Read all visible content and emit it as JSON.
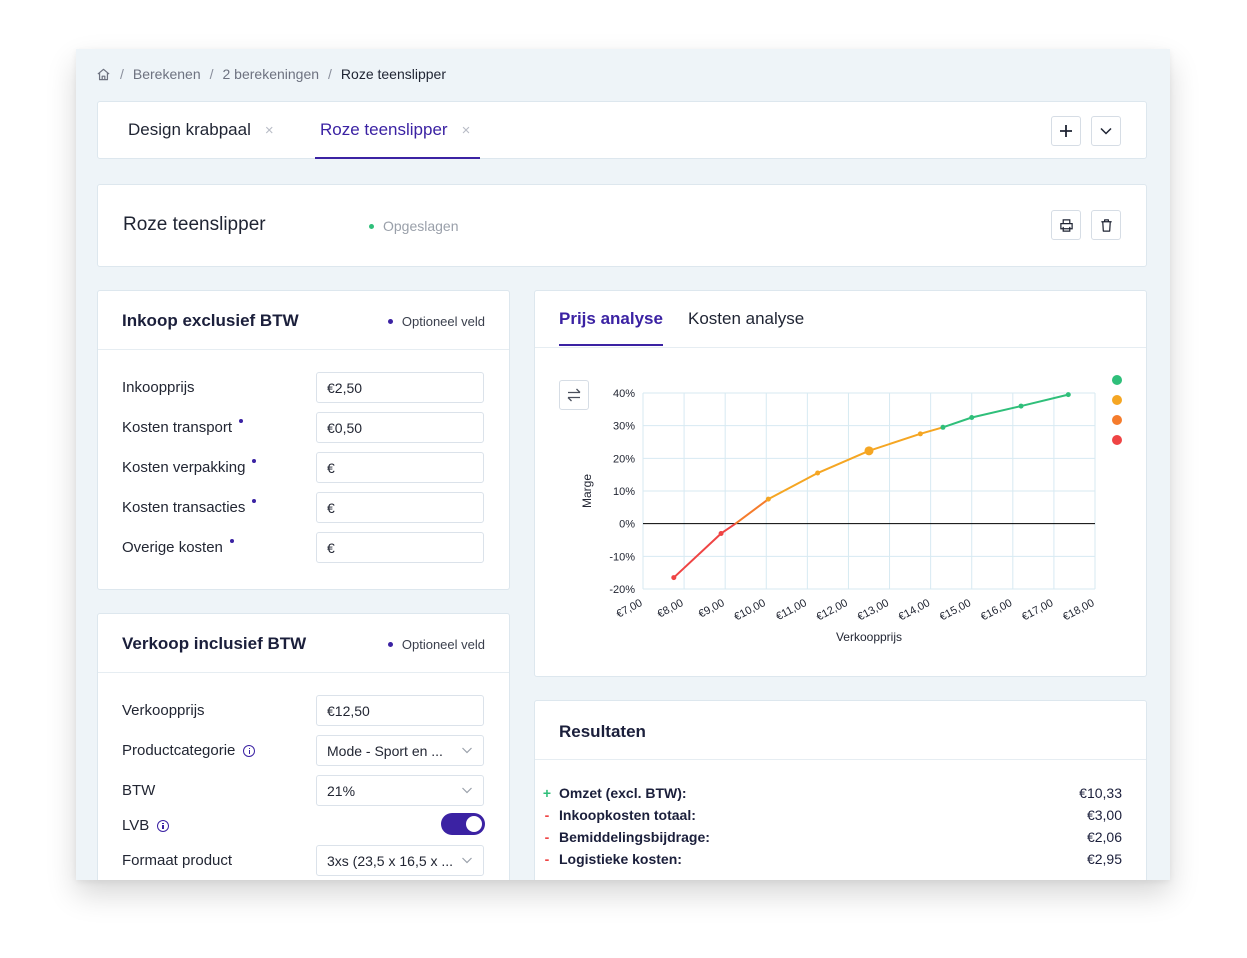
{
  "breadcrumb": {
    "items": [
      "Berekenen",
      "2 berekeningen"
    ],
    "current": "Roze teenslipper",
    "separator": "/"
  },
  "tabs": [
    {
      "label": "Design krabpaal",
      "close": "×"
    },
    {
      "label": "Roze teenslipper",
      "close": "×"
    }
  ],
  "header": {
    "title": "Roze teenslipper",
    "status": "Opgeslagen",
    "status_color": "#2fbf7a"
  },
  "inkoop": {
    "title": "Inkoop exclusief BTW",
    "optional": "Optioneel veld",
    "fields": [
      {
        "label": "Inkoopprijs",
        "value": "€2,50"
      },
      {
        "label": "Kosten transport",
        "value": "€0,50"
      },
      {
        "label": "Kosten verpakking",
        "value": "€"
      },
      {
        "label": "Kosten transacties",
        "value": "€"
      },
      {
        "label": "Overige kosten",
        "value": "€"
      }
    ]
  },
  "verkoop": {
    "title": "Verkoop inclusief BTW",
    "optional": "Optioneel veld",
    "verkoopprijs_label": "Verkoopprijs",
    "verkoopprijs_value": "€12,50",
    "categorie_label": "Productcategorie",
    "categorie_value": "Mode - Sport en ...",
    "btw_label": "BTW",
    "btw_value": "21%",
    "lvb_label": "LVB",
    "lvb_on": true,
    "formaat_label": "Formaat product",
    "formaat_value": "3xs (23,5 x 16,5 x ..."
  },
  "analysis": {
    "tabs": [
      "Prijs analyse",
      "Kosten analyse"
    ],
    "active_tab": "Prijs analyse",
    "legend_colors": [
      "#2fbf7a",
      "#f5a623",
      "#f57c2c",
      "#ef4444"
    ]
  },
  "chart_data": {
    "type": "line",
    "xlabel": "Verkoopprijs",
    "ylabel": "Marge",
    "x_ticks": [
      "€7,00",
      "€8,00",
      "€9,00",
      "€10,00",
      "€11,00",
      "€12,00",
      "€13,00",
      "€14,00",
      "€15,00",
      "€16,00",
      "€17,00",
      "€18,00"
    ],
    "y_ticks": [
      "40%",
      "30%",
      "20%",
      "10%",
      "0%",
      "-10%",
      "-20%"
    ],
    "xlim": [
      7,
      18
    ],
    "ylim": [
      -20,
      40
    ],
    "grid": true,
    "points": [
      {
        "x": 7.75,
        "y": -16.5
      },
      {
        "x": 8.9,
        "y": -3
      },
      {
        "x": 9.25,
        "y": 0
      },
      {
        "x": 10.05,
        "y": 7.5
      },
      {
        "x": 11.25,
        "y": 15.5
      },
      {
        "x": 12.5,
        "y": 22.3
      },
      {
        "x": 13.75,
        "y": 27.5
      },
      {
        "x": 14.3,
        "y": 29.5
      },
      {
        "x": 15.0,
        "y": 32.5
      },
      {
        "x": 16.2,
        "y": 36
      },
      {
        "x": 17.35,
        "y": 39.5
      }
    ],
    "highlight": {
      "x": 12.5,
      "y": 22.3
    },
    "segments": [
      {
        "color": "#ef4444",
        "from": 0,
        "to": 2
      },
      {
        "color": "#f57c2c",
        "from": 2,
        "to": 3
      },
      {
        "color": "#f5a623",
        "from": 3,
        "to": 7
      },
      {
        "color": "#2fbf7a",
        "from": 7,
        "to": 10
      }
    ]
  },
  "results": {
    "title": "Resultaten",
    "items": [
      {
        "sign": "+",
        "label": "Omzet (excl. BTW):",
        "value": "€10,33",
        "color": "#2fbf7a"
      },
      {
        "sign": "-",
        "label": "Inkoopkosten totaal:",
        "value": "€3,00",
        "color": "#ef4444"
      },
      {
        "sign": "-",
        "label": "Bemiddelingsbijdrage:",
        "value": "€2,06",
        "color": "#ef4444"
      },
      {
        "sign": "-",
        "label": "Logistieke kosten:",
        "value": "€2,95",
        "color": "#ef4444"
      }
    ]
  }
}
